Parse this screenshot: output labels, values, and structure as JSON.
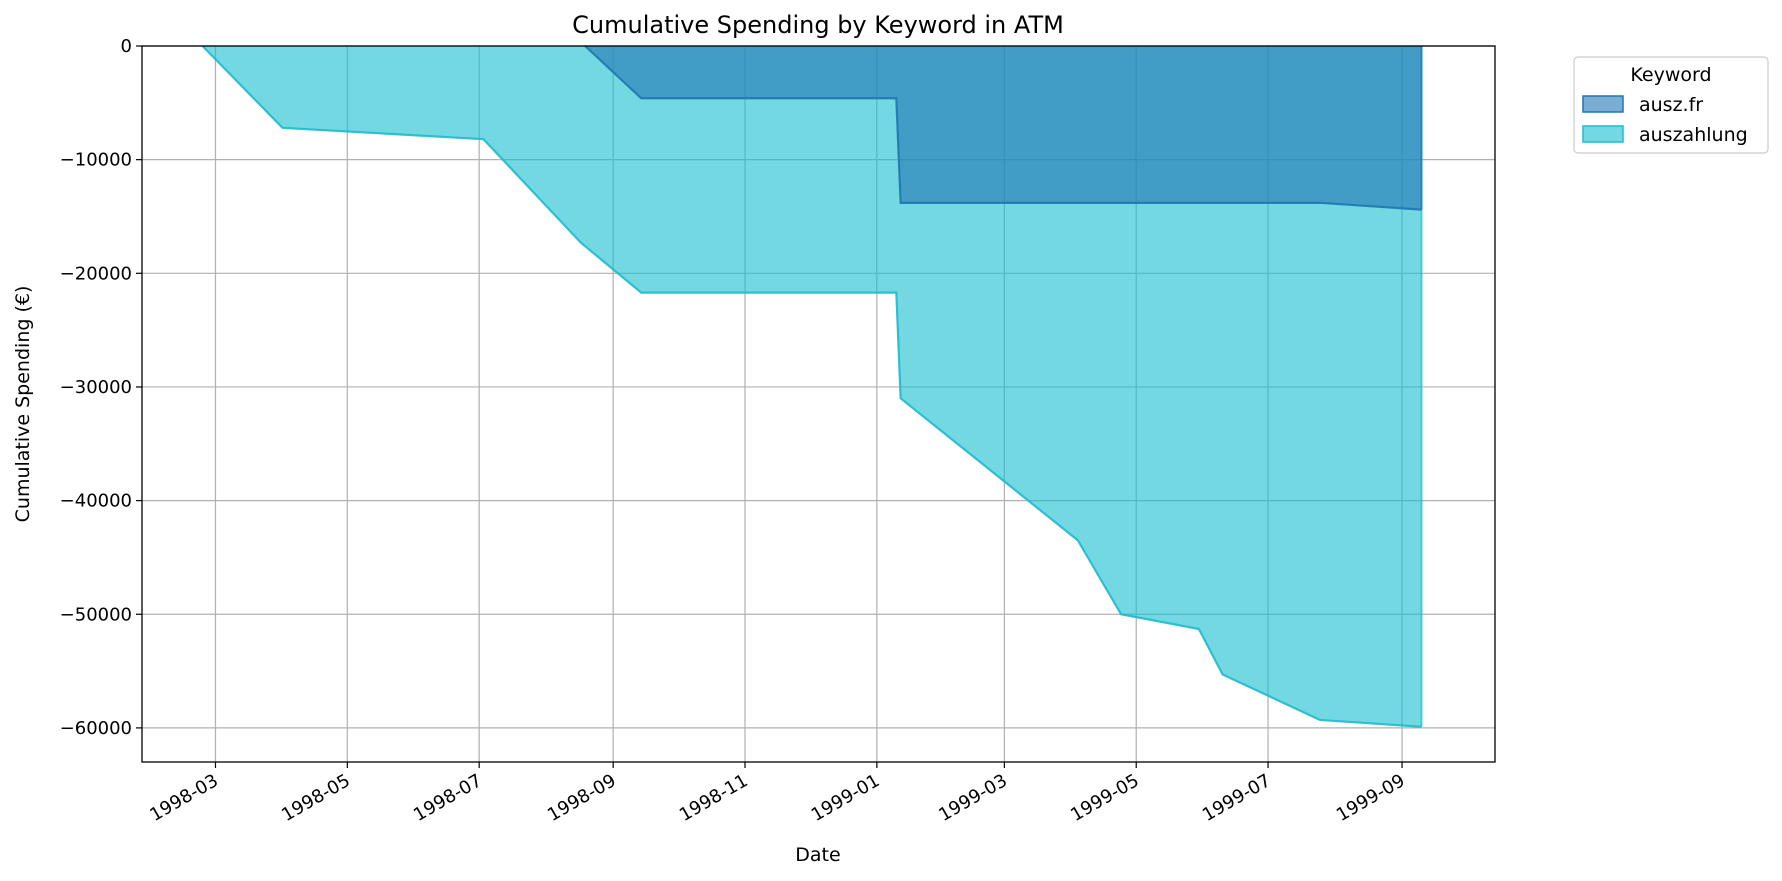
{
  "chart_data": {
    "type": "area",
    "title": "Cumulative Spending by Keyword in ATM",
    "xlabel": "Date",
    "ylabel": "Cumulative Spending (€)",
    "x_type": "date",
    "xlim": [
      "1998-01-26",
      "1999-10-14"
    ],
    "ylim": [
      -63000,
      0
    ],
    "x_ticks": [
      "1998-03-01",
      "1998-05-01",
      "1998-07-01",
      "1998-09-01",
      "1998-11-01",
      "1999-01-01",
      "1999-03-01",
      "1999-05-01",
      "1999-07-01",
      "1999-09-01"
    ],
    "x_tick_labels": [
      "1998-03",
      "1998-05",
      "1998-07",
      "1998-09",
      "1998-11",
      "1999-01",
      "1999-03",
      "1999-05",
      "1999-07",
      "1999-09"
    ],
    "y_ticks": [
      0,
      -10000,
      -20000,
      -30000,
      -40000,
      -50000,
      -60000
    ],
    "y_tick_labels": [
      "0",
      "−10000",
      "−20000",
      "−30000",
      "−40000",
      "−50000",
      "−60000"
    ],
    "grid": true,
    "stacked": false,
    "legend": {
      "title": "Keyword",
      "position": "outside-top-right"
    },
    "series": [
      {
        "name": "auszahlung",
        "color": "#17becf",
        "points": [
          {
            "x": "1998-02-23",
            "y": 0
          },
          {
            "x": "1998-04-01",
            "y": -7200
          },
          {
            "x": "1998-07-03",
            "y": -8200
          },
          {
            "x": "1998-08-17",
            "y": -17300
          },
          {
            "x": "1998-09-14",
            "y": -21700
          },
          {
            "x": "1999-01-10",
            "y": -21700
          },
          {
            "x": "1999-01-12",
            "y": -31000
          },
          {
            "x": "1999-04-04",
            "y": -43500
          },
          {
            "x": "1999-04-24",
            "y": -50000
          },
          {
            "x": "1999-05-30",
            "y": -51300
          },
          {
            "x": "1999-06-10",
            "y": -55300
          },
          {
            "x": "1999-07-25",
            "y": -59300
          },
          {
            "x": "1999-09-10",
            "y": -59900
          }
        ]
      },
      {
        "name": "ausz.fr",
        "color": "#1f77b4",
        "points": [
          {
            "x": "1998-08-19",
            "y": 0
          },
          {
            "x": "1998-09-14",
            "y": -4600
          },
          {
            "x": "1999-01-10",
            "y": -4600
          },
          {
            "x": "1999-01-12",
            "y": -13800
          },
          {
            "x": "1999-07-25",
            "y": -13800
          },
          {
            "x": "1999-09-10",
            "y": -14400
          }
        ]
      }
    ],
    "legend_order": [
      "ausz.fr",
      "auszahlung"
    ]
  }
}
